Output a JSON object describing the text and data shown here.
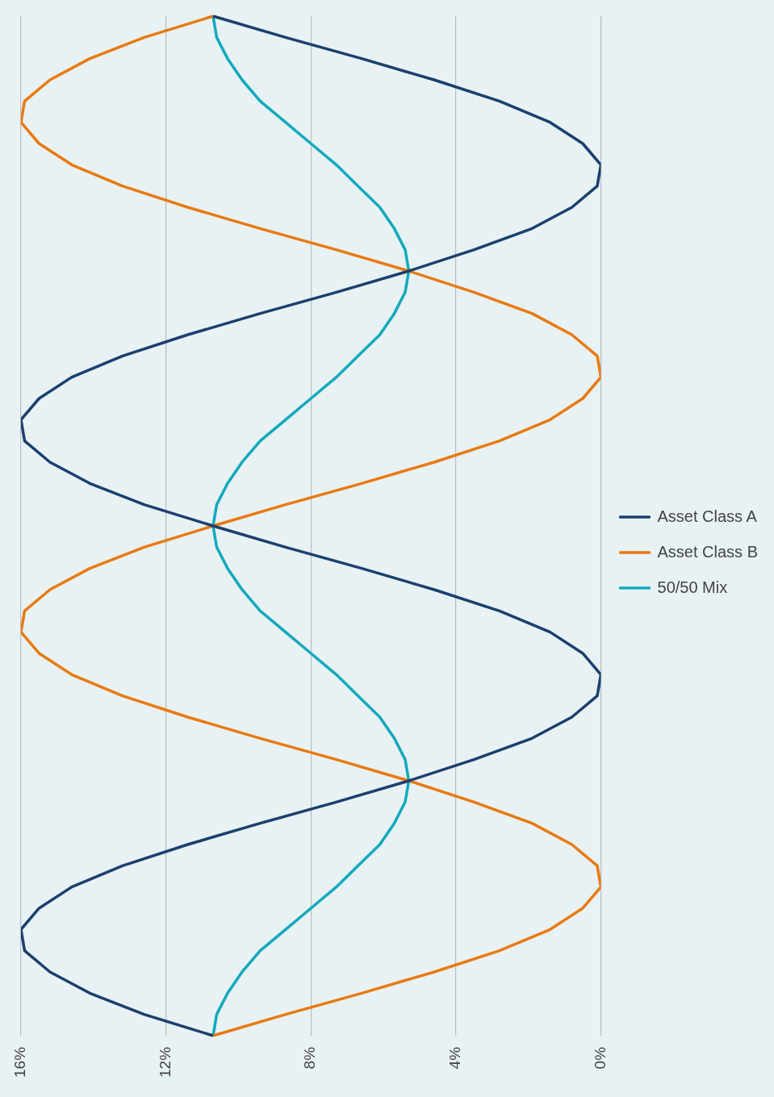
{
  "chart_data": {
    "type": "line",
    "orientation": "horizontal",
    "categories": [
      null,
      null,
      null,
      null,
      null,
      null,
      null,
      null,
      null,
      null,
      null,
      null,
      null,
      null,
      null,
      null,
      null,
      null,
      null,
      null,
      null,
      null,
      null,
      null,
      null,
      null,
      null,
      null,
      null,
      null,
      null,
      null,
      null,
      null,
      null,
      null,
      null,
      null,
      null,
      null,
      null,
      null,
      null,
      null,
      null,
      null,
      null,
      null,
      null
    ],
    "series": [
      {
        "name": "Asset Class A",
        "color": "#1b3f6e",
        "values": [
          10.7,
          8.7,
          6.6,
          4.6,
          2.8,
          1.4,
          0.5,
          0.0,
          0.1,
          0.8,
          1.9,
          3.5,
          5.3,
          7.3,
          9.4,
          11.4,
          13.2,
          14.6,
          15.5,
          16.0,
          15.9,
          15.2,
          14.1,
          12.6,
          10.7,
          8.7,
          6.6,
          4.6,
          2.8,
          1.4,
          0.5,
          0.0,
          0.1,
          0.8,
          1.9,
          3.5,
          5.3,
          7.3,
          9.4,
          11.4,
          13.2,
          14.6,
          15.5,
          16.0,
          15.9,
          15.2,
          14.1,
          12.6,
          10.7
        ]
      },
      {
        "name": "Asset Class B",
        "color": "#e87a10",
        "values": [
          10.7,
          12.6,
          14.1,
          15.2,
          15.9,
          16.0,
          15.5,
          14.6,
          13.2,
          11.4,
          9.4,
          7.3,
          5.3,
          3.5,
          1.9,
          0.8,
          0.1,
          0.0,
          0.5,
          1.4,
          2.8,
          4.6,
          6.6,
          8.7,
          10.7,
          12.6,
          14.1,
          15.2,
          15.9,
          16.0,
          15.5,
          14.6,
          13.2,
          11.4,
          9.4,
          7.3,
          5.3,
          3.5,
          1.9,
          0.8,
          0.1,
          0.0,
          0.5,
          1.4,
          2.8,
          4.6,
          6.6,
          8.7,
          10.7
        ]
      },
      {
        "name": "50/50 Mix",
        "color": "#10aabb",
        "values": [
          10.7,
          10.6,
          10.3,
          9.9,
          9.4,
          8.7,
          8.0,
          7.3,
          6.7,
          6.1,
          5.7,
          5.4,
          5.3,
          5.4,
          5.7,
          6.1,
          6.7,
          7.3,
          8.0,
          8.7,
          9.4,
          9.9,
          10.3,
          10.6,
          10.7,
          10.6,
          10.3,
          9.9,
          9.4,
          8.7,
          8.0,
          7.3,
          6.7,
          6.1,
          5.7,
          5.4,
          5.3,
          5.4,
          5.7,
          6.1,
          6.7,
          7.3,
          8.0,
          8.7,
          9.4,
          9.9,
          10.3,
          10.6,
          10.7
        ]
      }
    ],
    "xlim": [
      16,
      0
    ],
    "xticks": [
      {
        "value": 16,
        "label": "16%"
      },
      {
        "value": 12,
        "label": "12%"
      },
      {
        "value": 8,
        "label": "8%"
      },
      {
        "value": 4,
        "label": "4%"
      },
      {
        "value": 0,
        "label": "0%"
      }
    ],
    "grid": "x",
    "legend": "right",
    "marker": "none",
    "line_style": "solid"
  }
}
